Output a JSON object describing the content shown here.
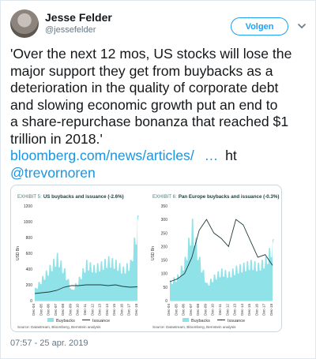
{
  "author": {
    "name": "Jesse Felder",
    "handle": "@jessefelder"
  },
  "follow_button": {
    "label": "Volgen"
  },
  "tweet": {
    "lines": [
      "'Over the next 12 mos, US stocks will lose the",
      "major support they get from buybacks as a",
      "deterioration in the quality of corporate debt",
      "and slowing economic growth put an end to",
      "a share-repurchase bonanza that reached $1",
      "trillion in 2018.'"
    ],
    "link": "bloomberg.com/news/articles/",
    "ellipsis": "…",
    "ht": "ht",
    "mention": "@trevornoren"
  },
  "timestamp": "07:57 - 25 apr. 2019",
  "icons": {
    "menu": "chevron-down-icon",
    "avatar": "avatar"
  },
  "colors": {
    "link": "#1b95e0",
    "buybacks": "#8fe3e8",
    "issuance": "#1f3b3a"
  },
  "media": {
    "charts": [
      {
        "exhibit": "EXHIBIT 5:",
        "title": "US buybacks and issuance (-2.6%)",
        "ylabel": "USD Bn",
        "y_ticks": [
          "0",
          "200",
          "400",
          "600",
          "800",
          "1000",
          "1200"
        ],
        "x_ticks": [
          "Dec-04",
          "Dec-05",
          "Dec-06",
          "Dec-07",
          "Dec-08",
          "Dec-09",
          "Dec-10",
          "Dec-11",
          "Dec-12",
          "Dec-13",
          "Dec-14",
          "Dec-15",
          "Dec-16",
          "Dec-17",
          "Dec-18"
        ],
        "legend": [
          "Buybacks",
          "Issuance"
        ],
        "source": "Source: Datastream, Bloomberg, Bernstein analysis"
      },
      {
        "exhibit": "EXHIBIT 6:",
        "title": "Pan Europe buybacks and issuance (-0.3%)",
        "ylabel": "USD Bn",
        "y_ticks": [
          "0",
          "50",
          "100",
          "150",
          "200",
          "250",
          "300",
          "350"
        ],
        "x_ticks": [
          "Dec-04",
          "Dec-05",
          "Dec-06",
          "Dec-07",
          "Dec-08",
          "Dec-09",
          "Dec-10",
          "Dec-11",
          "Dec-12",
          "Dec-13",
          "Dec-14",
          "Dec-15",
          "Dec-16",
          "Dec-17",
          "Dec-18"
        ],
        "legend": [
          "Buybacks",
          "Issuance"
        ],
        "source": "Source: Datastream, Bloomberg, Bernstein analysis"
      }
    ]
  },
  "chart_data": [
    {
      "type": "area",
      "title": "US buybacks and issuance (-2.6%)",
      "ylabel": "USD Bn",
      "ylim": [
        0,
        1200
      ],
      "x": [
        "Dec-04",
        "Dec-05",
        "Dec-06",
        "Dec-07",
        "Dec-08",
        "Dec-09",
        "Dec-10",
        "Dec-11",
        "Dec-12",
        "Dec-13",
        "Dec-14",
        "Dec-15",
        "Dec-16",
        "Dec-17",
        "Dec-18"
      ],
      "series": [
        {
          "name": "Buybacks",
          "style": "area",
          "values": [
            150,
            290,
            420,
            560,
            380,
            130,
            280,
            480,
            420,
            460,
            520,
            480,
            400,
            480,
            1000
          ]
        },
        {
          "name": "Issuance",
          "style": "line",
          "values": [
            90,
            100,
            110,
            130,
            170,
            190,
            190,
            200,
            200,
            200,
            190,
            200,
            180,
            170,
            175
          ]
        }
      ]
    },
    {
      "type": "area",
      "title": "Pan Europe buybacks and issuance (-0.3%)",
      "ylabel": "USD Bn",
      "ylim": [
        0,
        350
      ],
      "x": [
        "Dec-04",
        "Dec-05",
        "Dec-06",
        "Dec-07",
        "Dec-08",
        "Dec-09",
        "Dec-10",
        "Dec-11",
        "Dec-12",
        "Dec-13",
        "Dec-14",
        "Dec-15",
        "Dec-16",
        "Dec-17",
        "Dec-18"
      ],
      "series": [
        {
          "name": "Buybacks",
          "style": "area",
          "values": [
            70,
            90,
            150,
            280,
            150,
            60,
            90,
            110,
            100,
            120,
            130,
            140,
            130,
            150,
            210
          ]
        },
        {
          "name": "Issuance",
          "style": "line",
          "values": [
            70,
            80,
            100,
            160,
            260,
            300,
            250,
            230,
            200,
            300,
            280,
            220,
            160,
            170,
            130
          ]
        }
      ]
    }
  ]
}
